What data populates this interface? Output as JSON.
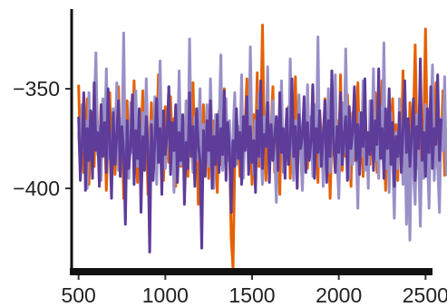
{
  "chart_data": {
    "type": "line",
    "title": "",
    "xlabel": "",
    "ylabel": "",
    "xlim": [
      460,
      2540
    ],
    "ylim": [
      -440,
      -310
    ],
    "x_ticks": [
      {
        "value": 500,
        "label": "500"
      },
      {
        "value": 1000,
        "label": "1000"
      },
      {
        "value": 1500,
        "label": "1500"
      },
      {
        "value": 2000,
        "label": "2000"
      },
      {
        "value": 2500,
        "label": "2500"
      }
    ],
    "y_ticks": [
      {
        "value": -350,
        "label": "−350"
      },
      {
        "value": -400,
        "label": "−400"
      }
    ],
    "grid": false,
    "legend": "none",
    "x_range": [
      500,
      2500
    ],
    "x_step": 10,
    "series": [
      {
        "color": "#E66101",
        "values": [
          -348,
          -382,
          -360,
          -392,
          -371,
          -355,
          -398,
          -376,
          -362,
          -389,
          -344,
          -370,
          -395,
          -358,
          -381,
          -367,
          -401,
          -374,
          -352,
          -386,
          -363,
          -393,
          -377,
          -349,
          -384,
          -368,
          -405,
          -372,
          -356,
          -390,
          -361,
          -379,
          -346,
          -383,
          -397,
          -364,
          -375,
          -351,
          -388,
          -369,
          -403,
          -380,
          -357,
          -392,
          -366,
          -378,
          -343,
          -385,
          -371,
          -396,
          -359,
          -374,
          -387,
          -354,
          -380,
          -365,
          -399,
          -376,
          -352,
          -389,
          -370,
          -383,
          -357,
          -394,
          -368,
          -378,
          -347,
          -386,
          -362,
          -408,
          -375,
          -390,
          -358,
          -382,
          -370,
          -395,
          -352,
          -384,
          -366,
          -379,
          -402,
          -361,
          -388,
          -373,
          -350,
          -391,
          -368,
          -378,
          -425,
          -440,
          -387,
          -364,
          -377,
          -394,
          -357,
          -383,
          -369,
          -345,
          -386,
          -371,
          -398,
          -363,
          -380,
          -342,
          -389,
          -367,
          -318,
          -375,
          -396,
          -360,
          -384,
          -370,
          -349,
          -392,
          -365,
          -378,
          -403,
          -356,
          -387,
          -371,
          -382,
          -359,
          -395,
          -368,
          -376,
          -344,
          -388,
          -363,
          -381,
          -400,
          -357,
          -374,
          -390,
          -366,
          -379,
          -348,
          -385,
          -372,
          -397,
          -361,
          -376,
          -392,
          -355,
          -383,
          -369,
          -405,
          -374,
          -358,
          -388,
          -366,
          -380,
          -343,
          -391,
          -370,
          -384,
          -353,
          -377,
          -399,
          -362,
          -386,
          -371,
          -347,
          -382,
          -368,
          -394,
          -356,
          -379,
          -372,
          -388,
          -360,
          -375,
          -352,
          -392,
          -367,
          -383,
          -346,
          -376,
          -401,
          -363,
          -389,
          -370,
          -355,
          -384,
          -368,
          -396,
          -359,
          -378,
          -341,
          -386,
          -372,
          -394,
          -357,
          -381,
          -366,
          -328,
          -375,
          -390,
          -350,
          -384,
          -369,
          -320,
          -377,
          -393,
          -361,
          -385,
          -372,
          -347,
          -389,
          -366,
          -378,
          -351,
          -394
        ]
      },
      {
        "color": "#9990C8",
        "values": [
          -372,
          -390,
          -358,
          -381,
          -366,
          -400,
          -352,
          -377,
          -388,
          -361,
          -332,
          -383,
          -369,
          -396,
          -355,
          -376,
          -340,
          -385,
          -372,
          -401,
          -360,
          -380,
          -347,
          -391,
          -365,
          -378,
          -322,
          -386,
          -370,
          -395,
          -357,
          -382,
          -368,
          -351,
          -389,
          -373,
          -403,
          -362,
          -384,
          -345,
          -377,
          -392,
          -366,
          -380,
          -354,
          -398,
          -371,
          -336,
          -385,
          -363,
          -390,
          -378,
          -349,
          -382,
          -367,
          -402,
          -359,
          -376,
          -341,
          -388,
          -370,
          -394,
          -356,
          -383,
          -325,
          -379,
          -392,
          -364,
          -386,
          -372,
          -350,
          -397,
          -368,
          -381,
          -358,
          -389,
          -345,
          -376,
          -400,
          -363,
          -384,
          -370,
          -333,
          -391,
          -378,
          -355,
          -386,
          -366,
          -404,
          -373,
          -352,
          -388,
          -369,
          -381,
          -343,
          -395,
          -372,
          -360,
          -384,
          -329,
          -378,
          -393,
          -366,
          -387,
          -352,
          -380,
          -398,
          -364,
          -376,
          -339,
          -389,
          -370,
          -356,
          -383,
          -407,
          -367,
          -379,
          -346,
          -392,
          -374,
          -361,
          -387,
          -335,
          -380,
          -396,
          -366,
          -384,
          -353,
          -377,
          -401,
          -369,
          -386,
          -348,
          -381,
          -364,
          -394,
          -358,
          -378,
          -324,
          -389,
          -371,
          -399,
          -360,
          -383,
          -350,
          -392,
          -367,
          -379,
          -343,
          -386,
          -405,
          -370,
          -357,
          -382,
          -330,
          -377,
          -395,
          -365,
          -388,
          -352,
          -380,
          -410,
          -362,
          -384,
          -346,
          -391,
          -373,
          -400,
          -356,
          -378,
          -340,
          -386,
          -369,
          -395,
          -359,
          -382,
          -327,
          -390,
          -374,
          -402,
          -362,
          -385,
          -415,
          -372,
          -390,
          -355,
          -379,
          -398,
          -366,
          -418,
          -380,
          -426,
          -370,
          -392,
          -408,
          -363,
          -386,
          -419,
          -372,
          -395,
          -358,
          -382,
          -410,
          -368,
          -338,
          -396,
          -374,
          -388,
          -412,
          -365,
          -381,
          -344,
          -393,
          -370,
          -406
        ]
      },
      {
        "color": "#5E3C99",
        "values": [
          -364,
          -396,
          -378,
          -352,
          -401,
          -370,
          -386,
          -361,
          -395,
          -347,
          -381,
          -372,
          -399,
          -358,
          -384,
          -367,
          -392,
          -350,
          -376,
          -405,
          -362,
          -388,
          -373,
          -356,
          -394,
          -369,
          -382,
          -418,
          -366,
          -390,
          -378,
          -353,
          -398,
          -371,
          -385,
          -360,
          -412,
          -374,
          -391,
          -364,
          -380,
          -432,
          -368,
          -396,
          -376,
          -355,
          -387,
          -370,
          -403,
          -361,
          -383,
          -374,
          -349,
          -393,
          -367,
          -381,
          -358,
          -397,
          -372,
          -386,
          -363,
          -408,
          -377,
          -390,
          -352,
          -384,
          -369,
          -399,
          -360,
          -378,
          -386,
          -430,
          -371,
          -394,
          -366,
          -381,
          -356,
          -400,
          -374,
          -388,
          -363,
          -392,
          -370,
          -383,
          -351,
          -396,
          -367,
          -380,
          -412,
          -376,
          -389,
          -360,
          -385,
          -372,
          -398,
          -364,
          -381,
          -354,
          -393,
          -369,
          -387,
          -376,
          -402,
          -361,
          -384,
          -346,
          -390,
          -373,
          -379,
          -357,
          -397,
          -368,
          -386,
          -374,
          -364,
          -391,
          -352,
          -382,
          -370,
          -395,
          -360,
          -388,
          -377,
          -345,
          -384,
          -369,
          -400,
          -363,
          -380,
          -374,
          -354,
          -392,
          -367,
          -386,
          -376,
          -348,
          -395,
          -370,
          -382,
          -361,
          -389,
          -373,
          -356,
          -397,
          -366,
          -384,
          -341,
          -378,
          -392,
          -369,
          -382,
          -352,
          -388,
          -374,
          -364,
          -396,
          -359,
          -380,
          -371,
          -349,
          -386,
          -368,
          -393,
          -362,
          -379,
          -345,
          -388,
          -372,
          -383,
          -356,
          -391,
          -366,
          -378,
          -340,
          -385,
          -370,
          -395,
          -360,
          -380,
          -350,
          -388,
          -367,
          -399,
          -374,
          -384,
          -362,
          -392,
          -371,
          -346,
          -382,
          -365,
          -389,
          -373,
          -355,
          -396,
          -369,
          -380,
          -335,
          -386,
          -372,
          -394,
          -360,
          -382,
          -349,
          -390,
          -370,
          -378,
          -343,
          -386,
          -365
        ]
      }
    ]
  }
}
